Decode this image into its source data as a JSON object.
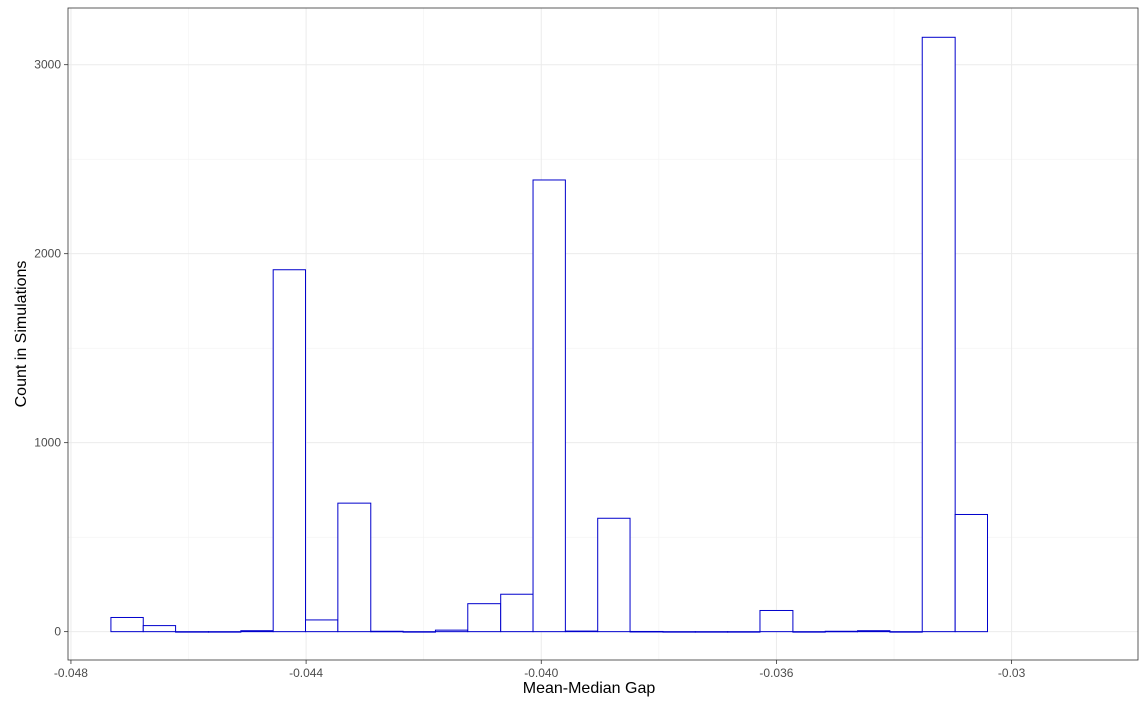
{
  "chart_data": {
    "type": "bar",
    "subtype": "histogram",
    "title": "",
    "xlabel": "Mean-Median Gap",
    "ylabel": "Count in Simulations",
    "xlim": [
      -0.04805,
      -0.02985
    ],
    "ylim": [
      -150,
      3300
    ],
    "x_ticks": [
      -0.048,
      -0.044,
      -0.04,
      -0.036,
      -0.032
    ],
    "x_tick_labels": [
      "-0.048",
      "-0.044",
      "-0.040",
      "-0.036",
      "-0.03"
    ],
    "y_ticks": [
      0,
      1000,
      2000,
      3000
    ],
    "y_tick_labels": [
      "0",
      "1000",
      "2000",
      "3000"
    ],
    "grid": true,
    "bar_fill": "#ffffff",
    "bar_outline": "#0000cc",
    "bin_width": 0.000552,
    "bins": [
      {
        "x0": -0.04732,
        "x1": -0.04677,
        "count": 75
      },
      {
        "x0": -0.04677,
        "x1": -0.04622,
        "count": 32
      },
      {
        "x0": -0.04622,
        "x1": -0.04566,
        "count": 0
      },
      {
        "x0": -0.04566,
        "x1": -0.04511,
        "count": 0
      },
      {
        "x0": -0.04511,
        "x1": -0.04456,
        "count": 5
      },
      {
        "x0": -0.04456,
        "x1": -0.04401,
        "count": 1915
      },
      {
        "x0": -0.04401,
        "x1": -0.04346,
        "count": 62
      },
      {
        "x0": -0.04346,
        "x1": -0.0429,
        "count": 680
      },
      {
        "x0": -0.0429,
        "x1": -0.04235,
        "count": 2
      },
      {
        "x0": -0.04235,
        "x1": -0.0418,
        "count": 0
      },
      {
        "x0": -0.0418,
        "x1": -0.04125,
        "count": 8
      },
      {
        "x0": -0.04125,
        "x1": -0.04069,
        "count": 148
      },
      {
        "x0": -0.04069,
        "x1": -0.04014,
        "count": 198
      },
      {
        "x0": -0.04014,
        "x1": -0.03959,
        "count": 2390
      },
      {
        "x0": -0.03959,
        "x1": -0.03904,
        "count": 3
      },
      {
        "x0": -0.03904,
        "x1": -0.03849,
        "count": 600
      },
      {
        "x0": -0.03849,
        "x1": -0.03793,
        "count": 1
      },
      {
        "x0": -0.03793,
        "x1": -0.03738,
        "count": 0
      },
      {
        "x0": -0.03738,
        "x1": -0.03683,
        "count": 0
      },
      {
        "x0": -0.03683,
        "x1": -0.03628,
        "count": 0
      },
      {
        "x0": -0.03628,
        "x1": -0.03572,
        "count": 112
      },
      {
        "x0": -0.03572,
        "x1": -0.03517,
        "count": 0
      },
      {
        "x0": -0.03517,
        "x1": -0.03462,
        "count": 2
      },
      {
        "x0": -0.03462,
        "x1": -0.03407,
        "count": 5
      },
      {
        "x0": -0.03407,
        "x1": -0.03352,
        "count": 0
      },
      {
        "x0": -0.03352,
        "x1": -0.03296,
        "count": 3145
      },
      {
        "x0": -0.03296,
        "x1": -0.03241,
        "count": 620
      }
    ]
  }
}
